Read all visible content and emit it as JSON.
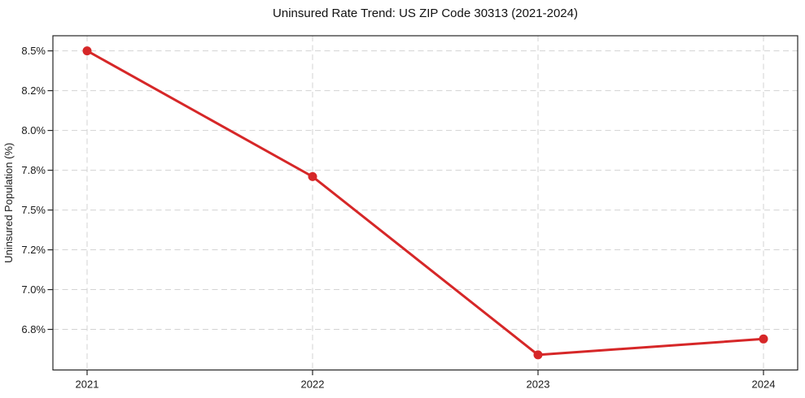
{
  "chart_data": {
    "type": "line",
    "title": "Uninsured Rate Trend: US ZIP Code 30313 (2021-2024)",
    "xlabel": "",
    "ylabel": "Uninsured Population (%)",
    "categories": [
      "2021",
      "2022",
      "2023",
      "2024"
    ],
    "series": [
      {
        "values": [
          8.5,
          7.71,
          6.59,
          6.69
        ]
      }
    ],
    "ylim": [
      6.495,
      8.595
    ],
    "yticks": [
      {
        "value": 8.5,
        "label": "8.5%"
      },
      {
        "value": 8.25,
        "label": "8.2%"
      },
      {
        "value": 8.0,
        "label": "8.0%"
      },
      {
        "value": 7.75,
        "label": "7.8%"
      },
      {
        "value": 7.5,
        "label": "7.5%"
      },
      {
        "value": 7.25,
        "label": "7.2%"
      },
      {
        "value": 7.0,
        "label": "7.0%"
      },
      {
        "value": 6.75,
        "label": "6.8%"
      }
    ],
    "grid": true,
    "grid_style": "dashed",
    "legend_position": "none",
    "line_color": "#d62728",
    "marker": "circle",
    "grid_color": "#d3d3d3",
    "background_color": "#ffffff"
  }
}
